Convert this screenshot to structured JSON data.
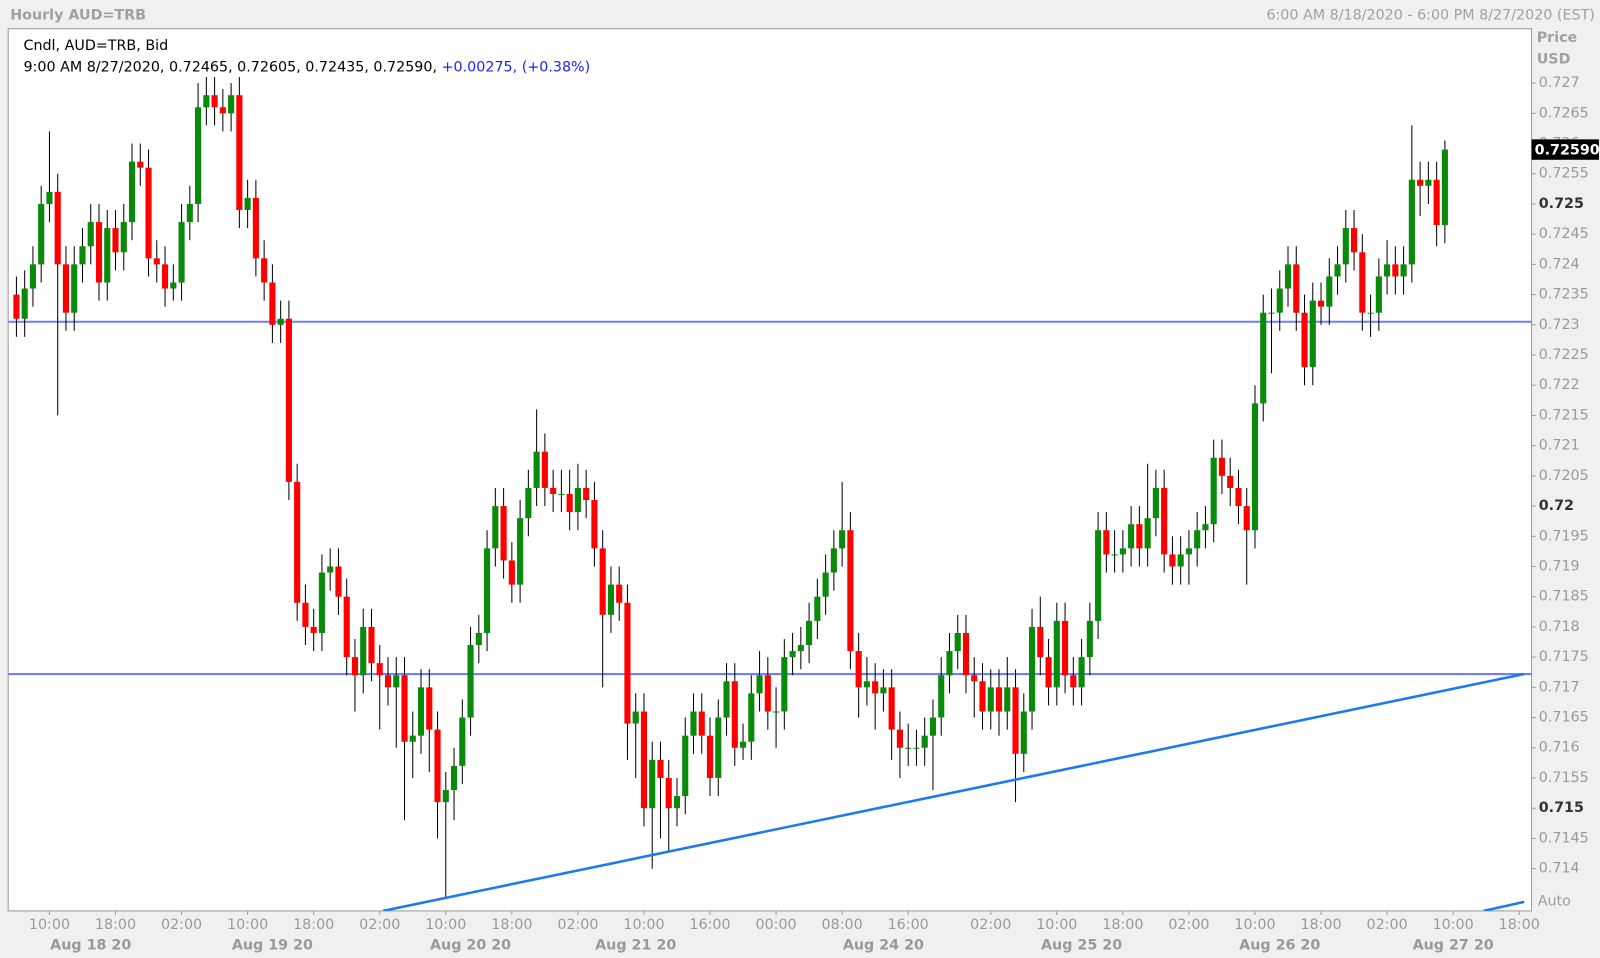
{
  "chart_data": {
    "type": "candlestick",
    "title": "Hourly AUD=TRB",
    "range_label": "6:00 AM 8/18/2020 - 6:00 PM 8/27/2020 (EST)",
    "axis_label": "Price",
    "unit_label": "USD",
    "legend_label": "Cndl, AUD=TRB, Bid",
    "info_label": "9:00 AM 8/27/2020, 0.72465, 0.72605, 0.72435, 0.72590,",
    "change_label": "+0.00275, (+0.38%)",
    "last_label": "0.72590",
    "scale_label": "Auto",
    "up_color": "#0a8a0a",
    "down_color": "#ff0000",
    "line_color": "#6f7dff",
    "trend_color": "#1e78ee",
    "open": [
      0.7235,
      0.7231,
      0.7236,
      0.724,
      0.725,
      0.7252,
      0.724,
      0.7232,
      0.724,
      0.7243,
      0.7247,
      0.7237,
      0.7246,
      0.7242,
      0.7247,
      0.7257,
      0.7256,
      0.7241,
      0.724,
      0.7236,
      0.7237,
      0.7247,
      0.725,
      0.7266,
      0.7268,
      0.7266,
      0.7265,
      0.7268,
      0.7249,
      0.7251,
      0.7241,
      0.7237,
      0.723,
      0.7231,
      0.7204,
      0.7184,
      0.718,
      0.7179,
      0.7189,
      0.719,
      0.7185,
      0.7175,
      0.7172,
      0.718,
      0.7174,
      0.7172,
      0.717,
      0.7172,
      0.7161,
      0.7162,
      0.717,
      0.7163,
      0.7151,
      0.7153,
      0.7157,
      0.7165,
      0.7177,
      0.7179,
      0.7193,
      0.72,
      0.7191,
      0.7187,
      0.7198,
      0.7203,
      0.7209,
      0.7203,
      0.7202,
      0.7202,
      0.7199,
      0.7203,
      0.7201,
      0.7193,
      0.7182,
      0.7187,
      0.7184,
      0.7164,
      0.7166,
      0.715,
      0.7158,
      0.7155,
      0.715,
      0.7152,
      0.7162,
      0.7166,
      0.7162,
      0.7155,
      0.7165,
      0.7171,
      0.716,
      0.7161,
      0.7169,
      0.7172,
      0.7166,
      0.7166,
      0.7175,
      0.7176,
      0.7177,
      0.7181,
      0.7185,
      0.7189,
      0.7193,
      0.7196,
      0.7176,
      0.717,
      0.7171,
      0.7169,
      0.717,
      0.7163,
      0.716,
      0.716,
      0.716,
      0.7162,
      0.7165,
      0.7172,
      0.7176,
      0.7179,
      0.7172,
      0.7171,
      0.7166,
      0.717,
      0.7166,
      0.717,
      0.7159,
      0.7166,
      0.718,
      0.7175,
      0.717,
      0.7181,
      0.7172,
      0.717,
      0.7175,
      0.7181,
      0.7196,
      0.7192,
      0.7192,
      0.7193,
      0.7197,
      0.7193,
      0.7198,
      0.7203,
      0.7192,
      0.719,
      0.7192,
      0.7193,
      0.7196,
      0.7197,
      0.7208,
      0.7205,
      0.7203,
      0.72,
      0.7196,
      0.7217,
      0.7232,
      0.7232,
      0.7236,
      0.724,
      0.7232,
      0.7223,
      0.7234,
      0.7233,
      0.7238,
      0.724,
      0.7246,
      0.7242,
      0.7232,
      0.7232,
      0.7238,
      0.724,
      0.7238,
      0.724,
      0.7254,
      0.7253,
      0.7254,
      0.72465
    ],
    "high": [
      0.7238,
      0.7239,
      0.7243,
      0.7253,
      0.7262,
      0.7255,
      0.7243,
      0.7243,
      0.7246,
      0.725,
      0.725,
      0.7249,
      0.7249,
      0.725,
      0.726,
      0.726,
      0.7259,
      0.7244,
      0.7243,
      0.724,
      0.725,
      0.7253,
      0.727,
      0.7271,
      0.7271,
      0.7269,
      0.727,
      0.7271,
      0.7254,
      0.7254,
      0.7244,
      0.724,
      0.7234,
      0.7234,
      0.7207,
      0.7187,
      0.7183,
      0.7192,
      0.7193,
      0.7193,
      0.7188,
      0.7178,
      0.7183,
      0.7183,
      0.7177,
      0.7175,
      0.7175,
      0.7175,
      0.7166,
      0.7173,
      0.7173,
      0.7166,
      0.7156,
      0.716,
      0.7168,
      0.718,
      0.7182,
      0.7196,
      0.7203,
      0.7203,
      0.7194,
      0.7201,
      0.7206,
      0.7216,
      0.7212,
      0.7206,
      0.7206,
      0.7206,
      0.7207,
      0.7206,
      0.7204,
      0.7196,
      0.719,
      0.719,
      0.7187,
      0.7169,
      0.7169,
      0.7161,
      0.7161,
      0.7158,
      0.7155,
      0.7165,
      0.7169,
      0.7169,
      0.7165,
      0.7168,
      0.7174,
      0.7174,
      0.7164,
      0.7172,
      0.7176,
      0.7175,
      0.717,
      0.7178,
      0.7179,
      0.718,
      0.7184,
      0.7188,
      0.7192,
      0.7196,
      0.7204,
      0.7199,
      0.7179,
      0.7175,
      0.7174,
      0.7173,
      0.7173,
      0.7166,
      0.7164,
      0.7163,
      0.7165,
      0.7168,
      0.7175,
      0.7179,
      0.7182,
      0.7182,
      0.7175,
      0.7174,
      0.7173,
      0.7173,
      0.7175,
      0.7173,
      0.7169,
      0.7183,
      0.7185,
      0.7178,
      0.7184,
      0.7184,
      0.7175,
      0.7178,
      0.7184,
      0.7199,
      0.7199,
      0.7196,
      0.7196,
      0.72,
      0.72,
      0.7207,
      0.7206,
      0.7206,
      0.7195,
      0.7195,
      0.7196,
      0.7199,
      0.72,
      0.7211,
      0.7211,
      0.7208,
      0.7206,
      0.7203,
      0.722,
      0.7235,
      0.7236,
      0.7239,
      0.7243,
      0.7243,
      0.7235,
      0.7237,
      0.7237,
      0.7241,
      0.7243,
      0.7249,
      0.7249,
      0.7245,
      0.7235,
      0.7241,
      0.7244,
      0.7243,
      0.7243,
      0.7263,
      0.7257,
      0.7257,
      0.7257,
      0.72605
    ],
    "low": [
      0.7228,
      0.7228,
      0.7233,
      0.7237,
      0.7247,
      0.7215,
      0.7229,
      0.7229,
      0.7237,
      0.724,
      0.7234,
      0.7234,
      0.7239,
      0.7239,
      0.7244,
      0.7253,
      0.7238,
      0.7237,
      0.7233,
      0.7234,
      0.7234,
      0.7244,
      0.7247,
      0.7263,
      0.7263,
      0.7262,
      0.7262,
      0.7246,
      0.7246,
      0.7238,
      0.7234,
      0.7227,
      0.7227,
      0.7201,
      0.7181,
      0.7177,
      0.7176,
      0.7176,
      0.7186,
      0.7182,
      0.7172,
      0.7166,
      0.7169,
      0.7171,
      0.7163,
      0.7167,
      0.716,
      0.7148,
      0.7155,
      0.7159,
      0.7156,
      0.7145,
      0.7135,
      0.7148,
      0.7154,
      0.7162,
      0.7174,
      0.7176,
      0.719,
      0.7188,
      0.7184,
      0.7184,
      0.7195,
      0.72,
      0.72,
      0.7199,
      0.7199,
      0.7196,
      0.7196,
      0.7198,
      0.719,
      0.717,
      0.7179,
      0.7181,
      0.7158,
      0.7155,
      0.7147,
      0.714,
      0.7145,
      0.7143,
      0.7147,
      0.7149,
      0.7159,
      0.7159,
      0.7152,
      0.7152,
      0.7162,
      0.7157,
      0.7158,
      0.7158,
      0.7166,
      0.7163,
      0.716,
      0.7163,
      0.7172,
      0.7173,
      0.7174,
      0.7178,
      0.7182,
      0.7186,
      0.719,
      0.7173,
      0.7165,
      0.7167,
      0.7163,
      0.7166,
      0.7158,
      0.7155,
      0.7157,
      0.7157,
      0.7157,
      0.7153,
      0.7162,
      0.7169,
      0.7173,
      0.7169,
      0.7165,
      0.7163,
      0.7163,
      0.7162,
      0.7163,
      0.7151,
      0.7156,
      0.7163,
      0.7172,
      0.7167,
      0.7167,
      0.7169,
      0.7167,
      0.7167,
      0.7172,
      0.7178,
      0.7189,
      0.7189,
      0.7189,
      0.719,
      0.719,
      0.719,
      0.7195,
      0.7189,
      0.7187,
      0.7187,
      0.7187,
      0.719,
      0.7193,
      0.7194,
      0.7202,
      0.72,
      0.7197,
      0.7187,
      0.7193,
      0.7214,
      0.7222,
      0.7229,
      0.7233,
      0.7229,
      0.722,
      0.722,
      0.723,
      0.723,
      0.7235,
      0.7237,
      0.7239,
      0.7229,
      0.7228,
      0.7229,
      0.7235,
      0.7235,
      0.7235,
      0.7237,
      0.7248,
      0.725,
      0.7243,
      0.72435
    ],
    "close": [
      0.7231,
      0.7236,
      0.724,
      0.725,
      0.7252,
      0.724,
      0.7232,
      0.724,
      0.7243,
      0.7247,
      0.7237,
      0.7246,
      0.7242,
      0.7247,
      0.7257,
      0.7256,
      0.7241,
      0.724,
      0.7236,
      0.7237,
      0.7247,
      0.725,
      0.7266,
      0.7268,
      0.7266,
      0.7265,
      0.7268,
      0.7249,
      0.7251,
      0.7241,
      0.7237,
      0.723,
      0.7231,
      0.7204,
      0.7184,
      0.718,
      0.7179,
      0.7189,
      0.719,
      0.7185,
      0.7175,
      0.7172,
      0.718,
      0.7174,
      0.7172,
      0.717,
      0.7172,
      0.7161,
      0.7162,
      0.717,
      0.7163,
      0.7151,
      0.7153,
      0.7157,
      0.7165,
      0.7177,
      0.7179,
      0.7193,
      0.72,
      0.7191,
      0.7187,
      0.7198,
      0.7203,
      0.7209,
      0.7203,
      0.7202,
      0.7202,
      0.7199,
      0.7203,
      0.7201,
      0.7193,
      0.7182,
      0.7187,
      0.7184,
      0.7164,
      0.7166,
      0.715,
      0.7158,
      0.7155,
      0.715,
      0.7152,
      0.7162,
      0.7166,
      0.7162,
      0.7155,
      0.7165,
      0.7171,
      0.716,
      0.7161,
      0.7169,
      0.7172,
      0.7166,
      0.7166,
      0.7175,
      0.7176,
      0.7177,
      0.7181,
      0.7185,
      0.7189,
      0.7193,
      0.7196,
      0.7176,
      0.717,
      0.7171,
      0.7169,
      0.717,
      0.7163,
      0.716,
      0.716,
      0.716,
      0.7162,
      0.7165,
      0.7172,
      0.7176,
      0.7179,
      0.7172,
      0.7171,
      0.7166,
      0.717,
      0.7166,
      0.717,
      0.7159,
      0.7166,
      0.718,
      0.7175,
      0.717,
      0.7181,
      0.7172,
      0.717,
      0.7175,
      0.7181,
      0.7196,
      0.7192,
      0.7192,
      0.7193,
      0.7197,
      0.7193,
      0.7198,
      0.7203,
      0.7192,
      0.719,
      0.7192,
      0.7193,
      0.7196,
      0.7197,
      0.7208,
      0.7205,
      0.7203,
      0.72,
      0.7196,
      0.7217,
      0.7232,
      0.7232,
      0.7236,
      0.724,
      0.7232,
      0.7223,
      0.7234,
      0.7233,
      0.7238,
      0.724,
      0.7246,
      0.7242,
      0.7232,
      0.7232,
      0.7238,
      0.724,
      0.7238,
      0.724,
      0.7254,
      0.7253,
      0.7254,
      0.72465,
      0.7259
    ],
    "xlim": [
      -1,
      183.5
    ],
    "xticks": [
      {
        "value": 4,
        "label": "10:00"
      },
      {
        "value": 12,
        "label": "18:00"
      },
      {
        "value": 20,
        "label": "02:00"
      },
      {
        "value": 28,
        "label": "10:00"
      },
      {
        "value": 36,
        "label": "18:00"
      },
      {
        "value": 44,
        "label": "02:00"
      },
      {
        "value": 52,
        "label": "10:00"
      },
      {
        "value": 60,
        "label": "18:00"
      },
      {
        "value": 68,
        "label": "02:00"
      },
      {
        "value": 76,
        "label": "10:00"
      },
      {
        "value": 84,
        "label": "16:00"
      },
      {
        "value": 92,
        "label": "00:00"
      },
      {
        "value": 100,
        "label": "08:00"
      },
      {
        "value": 108,
        "label": "16:00"
      },
      {
        "value": 118,
        "label": "02:00"
      },
      {
        "value": 126,
        "label": "10:00"
      },
      {
        "value": 134,
        "label": "18:00"
      },
      {
        "value": 142,
        "label": "02:00"
      },
      {
        "value": 150,
        "label": "10:00"
      },
      {
        "value": 158,
        "label": "18:00"
      },
      {
        "value": 166,
        "label": "02:00"
      },
      {
        "value": 174,
        "label": "10:00"
      },
      {
        "value": 182,
        "label": "18:00"
      }
    ],
    "date_ticks": [
      {
        "value": 9,
        "label": "Aug 18 20"
      },
      {
        "value": 31,
        "label": "Aug 19 20"
      },
      {
        "value": 55,
        "label": "Aug 20 20"
      },
      {
        "value": 75,
        "label": "Aug 21 20"
      },
      {
        "value": 105,
        "label": "Aug 24 20"
      },
      {
        "value": 129,
        "label": "Aug 25 20"
      },
      {
        "value": 153,
        "label": "Aug 26 20"
      },
      {
        "value": 174,
        "label": "Aug 27 20"
      }
    ],
    "ylim": [
      0.7133,
      0.7279
    ],
    "yticks": [
      0.714,
      0.7145,
      0.715,
      0.7155,
      0.716,
      0.7165,
      0.717,
      0.7175,
      0.718,
      0.7185,
      0.719,
      0.7195,
      0.72,
      0.7205,
      0.721,
      0.7215,
      0.722,
      0.7225,
      0.723,
      0.7235,
      0.724,
      0.7245,
      0.725,
      0.7255,
      0.726,
      0.7265,
      0.727
    ],
    "hlines": [
      0.72305,
      0.71722
    ],
    "trendlines": [
      {
        "x": [
          44.4,
          182.6
        ],
        "y": [
          0.7133,
          0.71722
        ]
      },
      {
        "x": [
          177.7,
          182.6
        ],
        "y": [
          0.7133,
          0.71345
        ]
      }
    ]
  }
}
